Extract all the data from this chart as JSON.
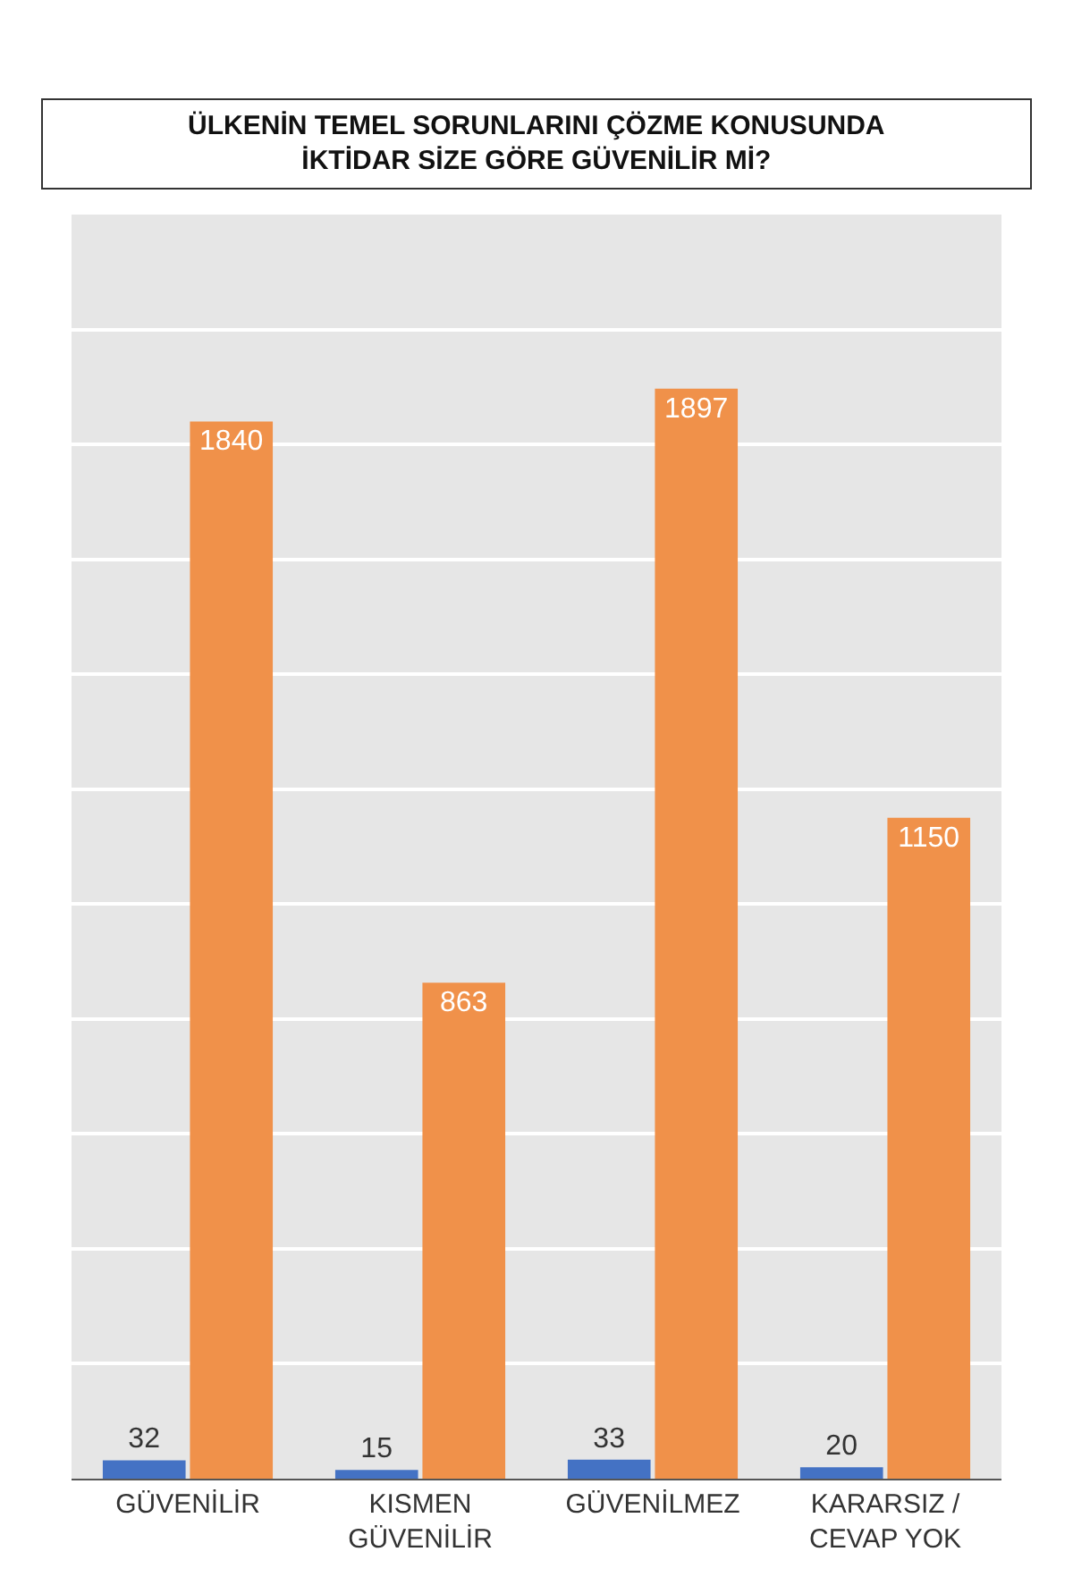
{
  "chart_data": {
    "type": "bar",
    "title": "ÜLKENİN TEMEL SORUNLARINI ÇÖZME KONUSUNDA\nİKTİDAR SİZE GÖRE GÜVENİLİR Mİ?",
    "categories": [
      "GÜVENİLİR",
      "KISMEN\nGÜVENİLİR",
      "GÜVENİLMEZ",
      "KARARSIZ /\nCEVAP YOK"
    ],
    "series": [
      {
        "color": "#4472c4",
        "values": [
          32,
          15,
          33,
          20
        ]
      },
      {
        "color": "#f0914a",
        "values": [
          1840,
          863,
          1897,
          1150
        ]
      }
    ],
    "ylim": [
      0,
      2200
    ],
    "yticks": [
      {
        "value": 0,
        "label": null
      },
      {
        "value": 200,
        "label": null
      },
      {
        "value": 400,
        "label": null
      },
      {
        "value": 600,
        "label": null
      },
      {
        "value": 800,
        "label": null
      },
      {
        "value": 1000,
        "label": null
      },
      {
        "value": 1200,
        "label": null
      },
      {
        "value": 1400,
        "label": null
      },
      {
        "value": 1600,
        "label": null
      },
      {
        "value": 1800,
        "label": null
      },
      {
        "value": 2000,
        "label": null
      },
      {
        "value": 2200,
        "label": null
      }
    ],
    "grid": "y",
    "tick_labels": "x",
    "data_labels": true
  }
}
